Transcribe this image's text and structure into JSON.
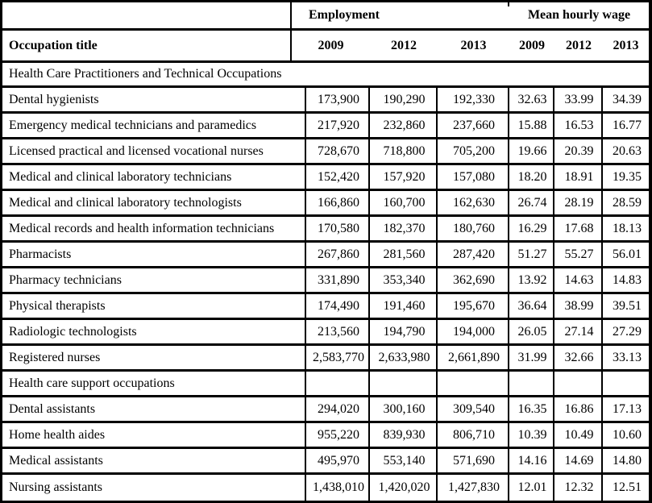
{
  "table": {
    "header": {
      "occupation_title": "Occupation title",
      "employment_group_label": "Employment",
      "wage_group_label": "Mean hourly wage",
      "employment_years": [
        "2009",
        "2012",
        "2013"
      ],
      "wage_years": [
        "2009",
        "2012",
        "2013"
      ]
    },
    "sections": [
      {
        "label": "Health Care Practitioners and Technical Occupations",
        "spans_full_width": true,
        "rows": [
          [
            "Dental hygienists",
            "173,900",
            "190,290",
            "192,330",
            "32.63",
            "33.99",
            "34.39"
          ],
          [
            "Emergency medical technicians and paramedics",
            "217,920",
            "232,860",
            "237,660",
            "15.88",
            "16.53",
            "16.77"
          ],
          [
            "Licensed practical and licensed vocational nurses",
            "728,670",
            "718,800",
            "705,200",
            "19.66",
            "20.39",
            "20.63"
          ],
          [
            "Medical and clinical laboratory technicians",
            "152,420",
            "157,920",
            "157,080",
            "18.20",
            "18.91",
            "19.35"
          ],
          [
            "Medical and clinical laboratory technologists",
            "166,860",
            "160,700",
            "162,630",
            "26.74",
            "28.19",
            "28.59"
          ],
          [
            "Medical records and health information technicians",
            "170,580",
            "182,370",
            "180,760",
            "16.29",
            "17.68",
            "18.13"
          ],
          [
            "Pharmacists",
            "267,860",
            "281,560",
            "287,420",
            "51.27",
            "55.27",
            "56.01"
          ],
          [
            "Pharmacy technicians",
            "331,890",
            "353,340",
            "362,690",
            "13.92",
            "14.63",
            "14.83"
          ],
          [
            "Physical therapists",
            "174,490",
            "191,460",
            "195,670",
            "36.64",
            "38.99",
            "39.51"
          ],
          [
            "Radiologic technologists",
            "213,560",
            "194,790",
            "194,000",
            "26.05",
            "27.14",
            "27.29"
          ],
          [
            "Registered nurses",
            "2,583,770",
            "2,633,980",
            "2,661,890",
            "31.99",
            "32.66",
            "33.13"
          ]
        ]
      },
      {
        "label": "Health care support occupations",
        "spans_full_width": false,
        "rows": [
          [
            "Dental assistants",
            "294,020",
            "300,160",
            "309,540",
            "16.35",
            "16.86",
            "17.13"
          ],
          [
            "Home health aides",
            "955,220",
            "839,930",
            "806,710",
            "10.39",
            "10.49",
            "10.60"
          ],
          [
            "Medical assistants",
            "495,970",
            "553,140",
            "571,690",
            "14.16",
            "14.69",
            "14.80"
          ],
          [
            "Nursing assistants",
            "1,438,010",
            "1,420,020",
            "1,427,830",
            "12.01",
            "12.32",
            "12.51"
          ]
        ]
      }
    ]
  },
  "colors": {
    "background": "#ffffff",
    "text": "#000000",
    "border": "#000000"
  }
}
